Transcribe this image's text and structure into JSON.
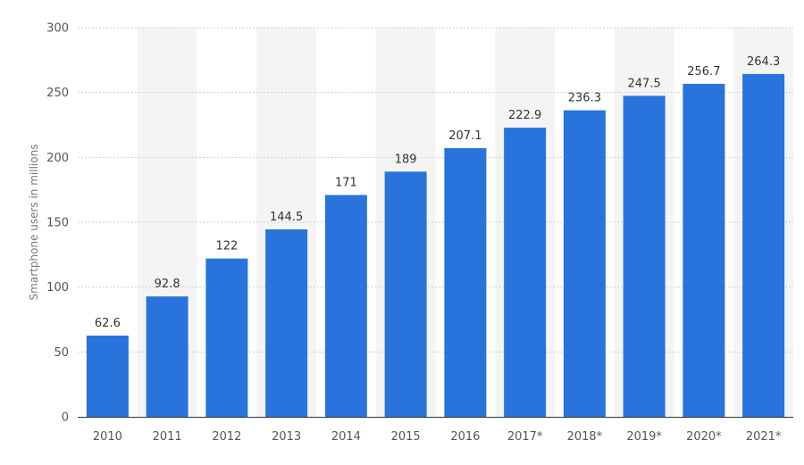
{
  "chart_data": {
    "type": "bar",
    "ylabel": "Smartphone users in millions",
    "xlabel": "",
    "ylim": [
      0,
      300
    ],
    "yticks": [
      0,
      50,
      100,
      150,
      200,
      250,
      300
    ],
    "grid": true,
    "bar_color": "#2874dc",
    "band_color": "#f4f4f4",
    "categories": [
      "2010",
      "2011",
      "2012",
      "2013",
      "2014",
      "2015",
      "2016",
      "2017*",
      "2018*",
      "2019*",
      "2020*",
      "2021*"
    ],
    "values": [
      62.6,
      92.8,
      122,
      144.5,
      171,
      189,
      207.1,
      222.9,
      236.3,
      247.5,
      256.7,
      264.3
    ],
    "value_labels": [
      "62.6",
      "92.8",
      "122",
      "144.5",
      "171",
      "189",
      "207.1",
      "222.9",
      "236.3",
      "247.5",
      "256.7",
      "264.3"
    ]
  }
}
